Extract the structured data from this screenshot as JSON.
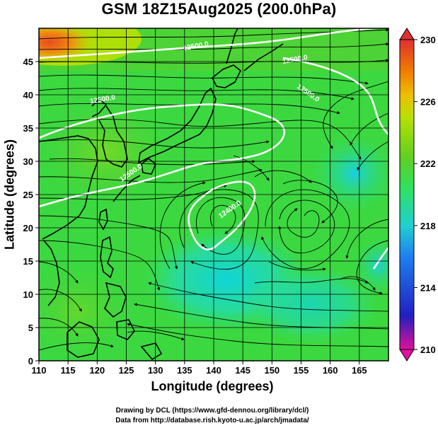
{
  "title": "GSM 18Z15Aug2025 (200.0hPa)",
  "axes": {
    "xlabel": "Longitude (degrees)",
    "ylabel": "Latitude  (degrees)",
    "x_ticks": [
      "110",
      "115",
      "120",
      "125",
      "130",
      "135",
      "140",
      "145",
      "150",
      "155",
      "160",
      "165"
    ],
    "y_ticks": [
      "0",
      "5",
      "10",
      "15",
      "20",
      "25",
      "30",
      "35",
      "40",
      "45"
    ],
    "xlim": [
      110,
      170
    ],
    "ylim": [
      0,
      50
    ]
  },
  "colorbar": {
    "ticks": [
      "230",
      "226",
      "222",
      "218",
      "214",
      "210"
    ],
    "range": [
      210,
      230
    ],
    "colors": [
      "#e0109a",
      "#2020c0",
      "#1e80f0",
      "#20d0d0",
      "#30e060",
      "#60d020",
      "#b8e000",
      "#f0c000",
      "#f07a00",
      "#e03030"
    ]
  },
  "contour_labels": [
    {
      "text": "12500.0",
      "lon": 121,
      "lat": 39
    },
    {
      "text": "12500.0",
      "lon": 126,
      "lat": 28
    },
    {
      "text": "12400.0",
      "lon": 143,
      "lat": 22.5
    },
    {
      "text": "12500.0",
      "lon": 137,
      "lat": 47
    },
    {
      "text": "12500.0",
      "lon": 154,
      "lat": 45
    },
    {
      "text": "12500.0",
      "lon": 156,
      "lat": 40
    }
  ],
  "credits": {
    "line1": "Drawing by DCL (https://www.gfd-dennou.org/library/dcl/)",
    "line2": "Data from http://database.rish.kyoto-u.ac.jp/arch/jmadata/"
  }
}
